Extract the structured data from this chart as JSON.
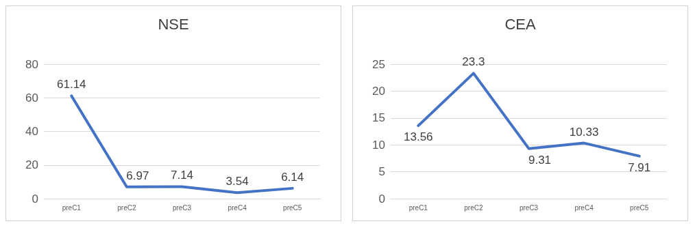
{
  "chart_data": [
    {
      "type": "line",
      "title": "NSE",
      "categories": [
        "preC1",
        "preC2",
        "preC3",
        "preC4",
        "preC5"
      ],
      "values": [
        61.14,
        6.97,
        7.14,
        3.54,
        6.14
      ],
      "color": "#4472c4",
      "ylim": [
        0,
        80
      ],
      "yticks": [
        0,
        20,
        40,
        60,
        80
      ],
      "grid": "y",
      "data_labels": true,
      "marker": "none"
    },
    {
      "type": "line",
      "title": "CEA",
      "categories": [
        "preC1",
        "preC2",
        "preC3",
        "preC4",
        "preC5"
      ],
      "values": [
        13.56,
        23.3,
        9.31,
        10.33,
        7.91
      ],
      "color": "#4472c4",
      "ylim": [
        0,
        25
      ],
      "yticks": [
        0,
        5,
        10,
        15,
        20,
        25
      ],
      "grid": "y",
      "data_labels": true,
      "marker": "none"
    }
  ]
}
